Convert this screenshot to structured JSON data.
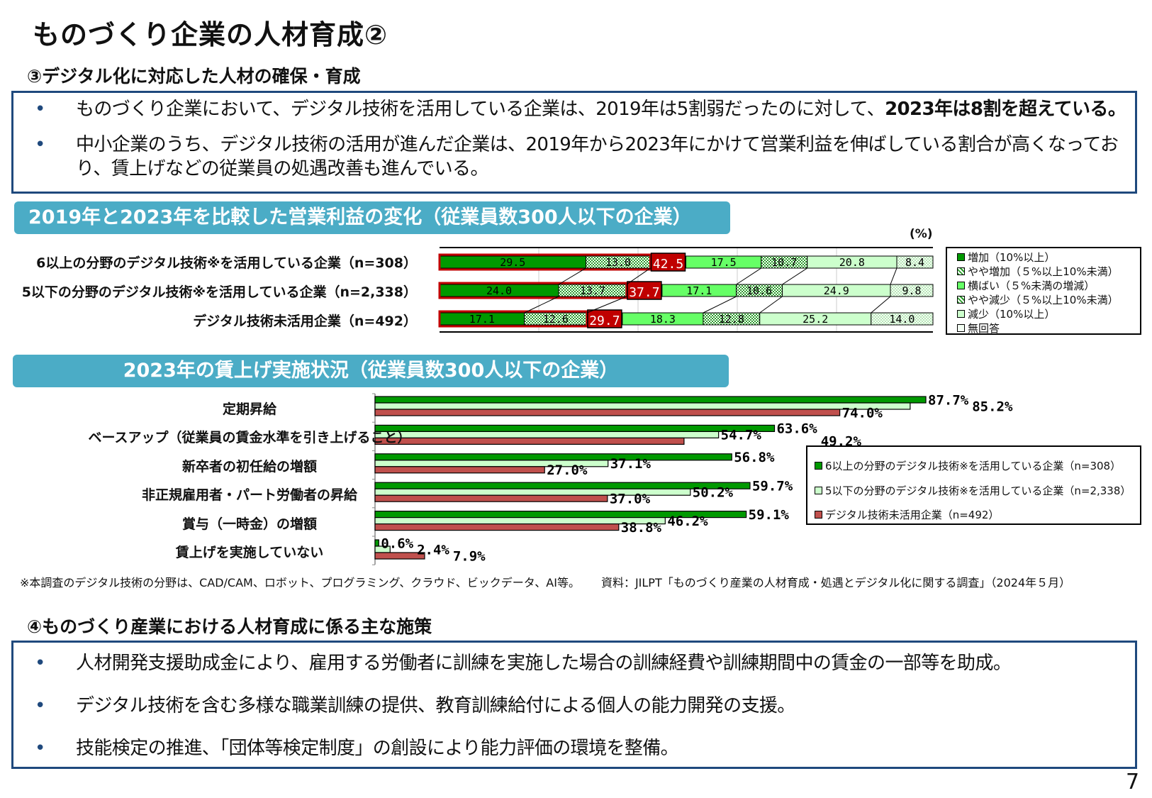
{
  "title": "ものづくり企業の人材育成②",
  "section3": {
    "heading": "③デジタル化に対応した人材の確保・育成",
    "bullet_symbol": "•",
    "bullets": [
      {
        "text": "ものづくり企業において、デジタル技術を活用している企業は、2019年は5割弱だったのに対して、",
        "bold": "2023年は8割を超えている。"
      },
      {
        "text": "中小企業のうち、デジタル技術の活用が進んだ企業は、2019年から2023年にかけて営業利益を伸ばしている割合が高くなっており、賃上げなどの従業員の処遇改善も進んでいる。",
        "bold": ""
      }
    ]
  },
  "chart1_banner": "2019年と2023年を比較した営業利益の変化（従業員数300人以下の企業）",
  "chart2_banner": "2023年の賃上げ実施状況（従業員数300人以下の企業）",
  "colors": {
    "green": "#009900",
    "light_green": "#66ff66",
    "pale_green": "#ccffcc",
    "red": "#c0504d",
    "highlight_red": "#c00000",
    "banner": "#4bacc6",
    "border_blue": "#1f497d"
  },
  "chart_data": [
    {
      "type": "bar",
      "orientation": "horizontal-stacked-100",
      "unit_label": "(%)",
      "categories": [
        "6以上の分野のデジタル技術※を活用している企業（n=308）",
        "5以下の分野のデジタル技術※を活用している企業（n=2,338）",
        "デジタル技術未活用企業（n=492）"
      ],
      "series": [
        {
          "name": "増加（10%以上）",
          "values": [
            29.5,
            24.0,
            17.1
          ]
        },
        {
          "name": "やや増加（５%以上10%未満）",
          "values": [
            13.0,
            13.7,
            12.6
          ]
        },
        {
          "name": "横ばい（５%未満の増減）",
          "values": [
            17.5,
            17.1,
            18.3
          ]
        },
        {
          "name": "やや減少（５%以上10%未満）",
          "values": [
            10.7,
            10.6,
            12.8
          ]
        },
        {
          "name": "減少（10%以上）",
          "values": [
            20.8,
            24.9,
            25.2
          ]
        },
        {
          "name": "無回答",
          "values": [
            8.4,
            9.8,
            14.0
          ]
        }
      ],
      "highlight_totals": [
        "42.5",
        "37.7",
        "29.7"
      ],
      "value_labels": [
        [
          "29.5",
          "13.0",
          "17.5",
          "10.7",
          "20.8",
          "8.4"
        ],
        [
          "24.0",
          "13.7",
          "17.1",
          "10.6",
          "24.9",
          "9.8"
        ],
        [
          "17.1",
          "12.6",
          "18.3",
          "12.8",
          "25.2",
          "14.0"
        ]
      ],
      "xlim": [
        0,
        100
      ],
      "grid": true,
      "legend": "right"
    },
    {
      "type": "bar",
      "orientation": "horizontal-grouped",
      "categories": [
        "定期昇給",
        "ベースアップ（従業員の賃金水準を引き上げること）",
        "新卒者の初任給の増額",
        "非正規雇用者・パート労働者の昇給",
        "賞与（一時金）の増額",
        "賃上げを実施していない"
      ],
      "series": [
        {
          "name": "6以上の分野のデジタル技術※を活用している企業（n=308）",
          "values": [
            87.7,
            63.6,
            56.8,
            59.7,
            59.1,
            0.6
          ],
          "labels": [
            "87.7%",
            "63.6%",
            "56.8%",
            "59.7%",
            "59.1%",
            "0.6%"
          ]
        },
        {
          "name": "5以下の分野のデジタル技術※を活用している企業（n=2,338）",
          "values": [
            85.2,
            54.7,
            37.1,
            50.2,
            46.2,
            2.4
          ],
          "labels": [
            "85.2%",
            "54.7%",
            "37.1%",
            "50.2%",
            "46.2%",
            "2.4%"
          ]
        },
        {
          "name": "デジタル技術未活用企業（n=492）",
          "values": [
            74.0,
            49.2,
            27.0,
            37.0,
            38.8,
            7.9
          ],
          "labels": [
            "74.0%",
            "49.2%",
            "27.0%",
            "37.0%",
            "38.8%",
            "7.9%"
          ]
        }
      ],
      "xlim": [
        0,
        100
      ],
      "legend": "right"
    }
  ],
  "footnote_left": "※本調査のデジタル技術の分野は、CAD/CAM、ロボット、プログラミング、クラウド、ビックデータ、AI等。",
  "footnote_right": "資料：JILPT「ものづくり産業の人材育成・処遇とデジタル化に関する調査」（2024年５月）",
  "section4": {
    "heading": "④ものづくり産業における人材育成に係る主な施策",
    "bullets": [
      "人材開発支援助成金により、雇用する労働者に訓練を実施した場合の訓練経費や訓練期間中の賃金の一部等を助成。",
      "デジタル技術を含む多様な職業訓練の提供、教育訓練給付による個人の能力開発の支援。",
      "技能検定の推進、「団体等検定制度」の創設により能力評価の環境を整備。"
    ]
  },
  "page_number": "7"
}
